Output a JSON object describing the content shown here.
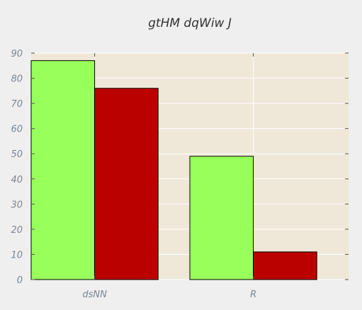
{
  "chart_data": {
    "type": "bar",
    "title": "gtHM dqWiw J",
    "xlabel": "",
    "ylabel": "",
    "categories": [
      "dsNN",
      "R"
    ],
    "series": [
      {
        "values": [
          87,
          49
        ],
        "color": "#99ff5b"
      },
      {
        "values": [
          76,
          11
        ],
        "color": "#bb0000"
      }
    ],
    "ylim": [
      0,
      90
    ],
    "yticks": [
      0,
      10,
      20,
      30,
      40,
      50,
      60,
      70,
      80,
      90
    ],
    "grid": true,
    "plot_background": "#efe8d8",
    "figure_background": "#efefef"
  }
}
